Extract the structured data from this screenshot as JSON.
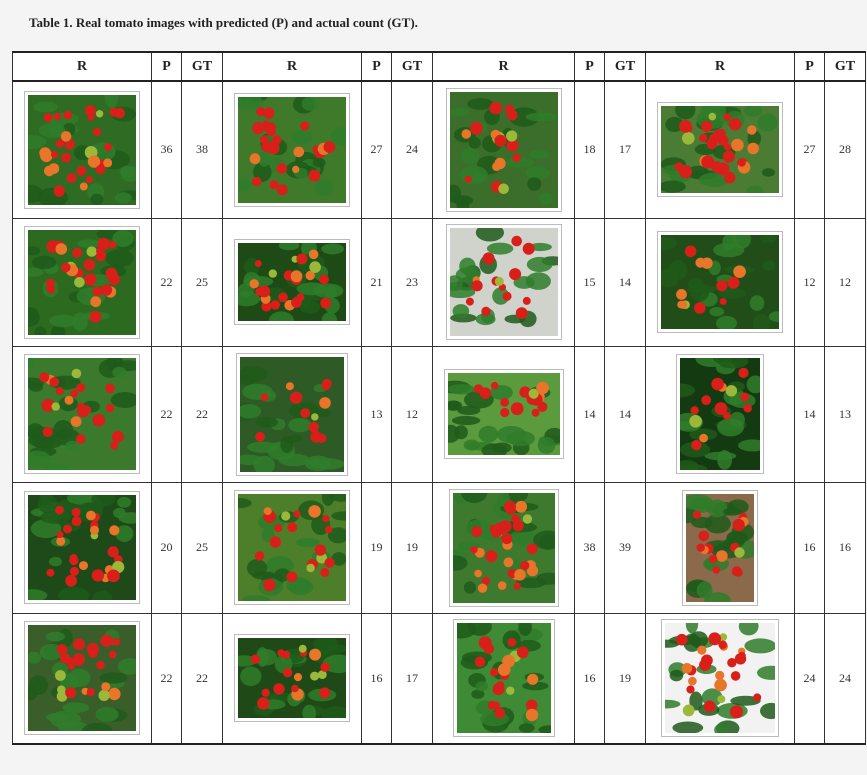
{
  "caption": "Table 1. Real tomato images with predicted (P) and actual count (GT).",
  "headers": [
    "R",
    "P",
    "GT",
    "R",
    "P",
    "GT",
    "R",
    "P",
    "GT",
    "R",
    "P",
    "GT"
  ],
  "rows": [
    [
      {
        "img": "cherry-tomato-truss-photo",
        "p": "36",
        "gt": "38"
      },
      {
        "img": "potted-tomato-plant-photo",
        "p": "27",
        "gt": "24"
      },
      {
        "img": "yellow-pot-tomato-plant-photo",
        "p": "18",
        "gt": "17"
      },
      {
        "img": "tomato-vine-photo",
        "p": "27",
        "gt": "28"
      }
    ],
    [
      {
        "img": "tomato-bush-photo",
        "p": "22",
        "gt": "25"
      },
      {
        "img": "tomato-cluster-photo",
        "p": "21",
        "gt": "23"
      },
      {
        "img": "dark-potted-tomato-photo",
        "p": "15",
        "gt": "14"
      },
      {
        "img": "tomato-foliage-photo",
        "p": "12",
        "gt": "12"
      }
    ],
    [
      {
        "img": "tomato-truss-photo",
        "p": "22",
        "gt": "22"
      },
      {
        "img": "staked-tomato-photo",
        "p": "13",
        "gt": "12"
      },
      {
        "img": "orange-tomato-leaves-photo",
        "p": "14",
        "gt": "14"
      },
      {
        "img": "hanging-tomato-photo",
        "p": "14",
        "gt": "13"
      }
    ],
    [
      {
        "img": "tomato-strings-photo",
        "p": "20",
        "gt": "25"
      },
      {
        "img": "orange-cherry-tomato-photo",
        "p": "19",
        "gt": "19"
      },
      {
        "img": "large-pot-tomato-photo",
        "p": "38",
        "gt": "39"
      },
      {
        "img": "small-yellow-pot-tomato-photo",
        "p": "16",
        "gt": "16"
      }
    ],
    [
      {
        "img": "ripening-tomato-truss-photo",
        "p": "22",
        "gt": "22"
      },
      {
        "img": "tomato-closeup-photo",
        "p": "16",
        "gt": "17"
      },
      {
        "img": "barrel-pot-tomato-photo",
        "p": "16",
        "gt": "19"
      },
      {
        "img": "green-pot-tomato-photo",
        "p": "24",
        "gt": "24"
      }
    ]
  ]
}
